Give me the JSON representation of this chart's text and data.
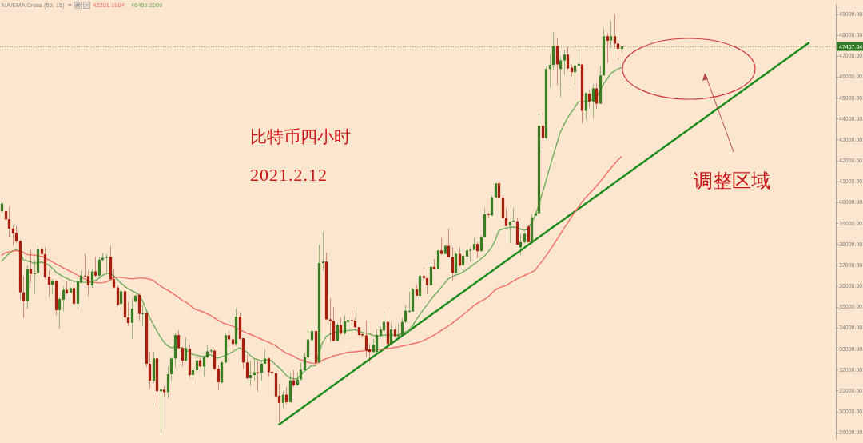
{
  "chart_data": {
    "type": "candlestick",
    "title": "比特币四小时",
    "subtitle": "2021.2.12",
    "legend_title": "MA/EMA Cross (50, 15)",
    "legend": "top left",
    "tick_labels": "y",
    "annotations": [
      "调整区域",
      {
        "text": "47467.04",
        "y": 47467.04
      }
    ],
    "ylim": [
      28710,
      49490
    ],
    "yticks": [
      {
        "value": 29000,
        "label": "29000.00"
      },
      {
        "value": 30000,
        "label": "30000.00"
      },
      {
        "value": 31000,
        "label": "31000.00"
      },
      {
        "value": 32000,
        "label": "32000.00"
      },
      {
        "value": 33000,
        "label": "33000.00"
      },
      {
        "value": 34000,
        "label": "34000.00"
      },
      {
        "value": 35000,
        "label": "35000.00"
      },
      {
        "value": 36000,
        "label": "36000.00"
      },
      {
        "value": 37000,
        "label": "37000.00"
      },
      {
        "value": 38000,
        "label": "38000.00"
      },
      {
        "value": 39000,
        "label": "39000.00"
      },
      {
        "value": 40000,
        "label": "40000.00"
      },
      {
        "value": 41000,
        "label": "41000.00"
      },
      {
        "value": 42000,
        "label": "42000.00"
      },
      {
        "value": 43000,
        "label": "43000.00"
      },
      {
        "value": 44000,
        "label": "44000.00"
      },
      {
        "value": 45000,
        "label": "45000.00"
      },
      {
        "value": 46000,
        "label": "46000.00"
      },
      {
        "value": 47000,
        "label": "47000.00"
      },
      {
        "value": 48000,
        "label": "48000.00"
      },
      {
        "value": 49000,
        "label": "49000.00"
      }
    ],
    "ref_lines": [
      {
        "axis": "y",
        "value": 47467.04,
        "color": "#8f9a72",
        "line_style": "dotted"
      }
    ],
    "categories": [
      null,
      null,
      null,
      null,
      null,
      null,
      null,
      null,
      null,
      null,
      null,
      null,
      null,
      null,
      null,
      null,
      null,
      null,
      null,
      null,
      null,
      null,
      null,
      null,
      null,
      null,
      null,
      null,
      null,
      null,
      null,
      null,
      null,
      null,
      null,
      null,
      null,
      null,
      null,
      null,
      null,
      null,
      null,
      null,
      null,
      null,
      null,
      null,
      null,
      null,
      null,
      null,
      null,
      null,
      null,
      null,
      null,
      null,
      null,
      null,
      null,
      null,
      null,
      null,
      null,
      null,
      null,
      null,
      null,
      null,
      null,
      null,
      null,
      null,
      null,
      null,
      null,
      null,
      null,
      null,
      null,
      null,
      null,
      null,
      null,
      null,
      null,
      null,
      null,
      null,
      null,
      null,
      null,
      null,
      null,
      null,
      null,
      null,
      null,
      null,
      null,
      null,
      null,
      null,
      null,
      null,
      null,
      null,
      null,
      null,
      null,
      null,
      null,
      null,
      null,
      null,
      null,
      null,
      null,
      null,
      null,
      null,
      null,
      null,
      null,
      null,
      null,
      null,
      null,
      null,
      null,
      null,
      null,
      null,
      null,
      null,
      null,
      null,
      null,
      null,
      null,
      null,
      null,
      null,
      null,
      null,
      null,
      null,
      null,
      null,
      null,
      null,
      null,
      null,
      null,
      null,
      null,
      null,
      null,
      null,
      null,
      null,
      null,
      null,
      null,
      null,
      null,
      null,
      null,
      null,
      null,
      null,
      null,
      null,
      null,
      null,
      null,
      null,
      null,
      null,
      null,
      null,
      null,
      null,
      null,
      null,
      null,
      null,
      null,
      null,
      null,
      null,
      null,
      null,
      null,
      null,
      null,
      null,
      null,
      null,
      null,
      null,
      null,
      null,
      null,
      null,
      null,
      null,
      null,
      null,
      null,
      null,
      null,
      null,
      null,
      null,
      null,
      null,
      null,
      null,
      null,
      null,
      null,
      null,
      null,
      null,
      null,
      null,
      null,
      null,
      null,
      null
    ],
    "ohlc": [
      [
        39590,
        40090,
        39510,
        39960
      ],
      [
        39590,
        39660,
        39180,
        39200
      ],
      [
        39210,
        39810,
        38360,
        38760
      ],
      [
        38760,
        38890,
        37940,
        38530
      ],
      [
        38550,
        38890,
        38050,
        38160
      ],
      [
        38160,
        38240,
        35360,
        35710
      ],
      [
        35710,
        36490,
        34490,
        35290
      ],
      [
        35290,
        36990,
        34930,
        36840
      ],
      [
        36840,
        37740,
        36180,
        36590
      ],
      [
        36610,
        37260,
        35610,
        36620
      ],
      [
        36640,
        38010,
        36430,
        37760
      ],
      [
        37760,
        37860,
        37490,
        37540
      ],
      [
        37540,
        37860,
        36360,
        36430
      ],
      [
        36460,
        36740,
        35490,
        36070
      ],
      [
        36070,
        36360,
        35610,
        36260
      ],
      [
        36260,
        36290,
        34610,
        34860
      ],
      [
        34860,
        35490,
        33990,
        35390
      ],
      [
        35360,
        35990,
        34800,
        35830
      ],
      [
        35830,
        36260,
        35610,
        35660
      ],
      [
        35700,
        35950,
        35690,
        35910
      ],
      [
        35910,
        36070,
        35130,
        35170
      ],
      [
        35170,
        36460,
        34890,
        36200
      ],
      [
        36180,
        36740,
        36140,
        36510
      ],
      [
        36510,
        37560,
        36440,
        36490
      ],
      [
        36490,
        36740,
        35530,
        36040
      ],
      [
        36040,
        36860,
        35910,
        36710
      ],
      [
        36710,
        37400,
        36440,
        36510
      ],
      [
        36510,
        37420,
        36440,
        37270
      ],
      [
        37260,
        37590,
        37190,
        37360
      ],
      [
        37360,
        37530,
        36630,
        37410
      ],
      [
        37410,
        37930,
        36290,
        36340
      ],
      [
        36340,
        36860,
        35880,
        35940
      ],
      [
        35940,
        36050,
        35050,
        35110
      ],
      [
        35160,
        35890,
        34860,
        35760
      ],
      [
        35760,
        35990,
        34110,
        34510
      ],
      [
        34510,
        35240,
        34110,
        34240
      ],
      [
        34260,
        35430,
        33490,
        34930
      ],
      [
        35260,
        35610,
        35240,
        35550
      ],
      [
        35590,
        35680,
        34340,
        34680
      ],
      [
        34680,
        35110,
        34090,
        34710
      ],
      [
        34710,
        34750,
        32140,
        32300
      ],
      [
        32300,
        32860,
        31110,
        31490
      ],
      [
        31490,
        32860,
        31380,
        32550
      ],
      [
        32550,
        32560,
        30240,
        30990
      ],
      [
        30990,
        31110,
        28990,
        31060
      ],
      [
        31060,
        31240,
        30740,
        30940
      ],
      [
        30940,
        32170,
        30640,
        31800
      ],
      [
        31800,
        32610,
        31490,
        32550
      ],
      [
        32550,
        33760,
        32110,
        33670
      ],
      [
        33670,
        33890,
        32990,
        33050
      ],
      [
        33050,
        33110,
        32170,
        32450
      ],
      [
        32450,
        33550,
        32390,
        33050
      ],
      [
        33010,
        33210,
        31610,
        31760
      ],
      [
        31760,
        32170,
        31510,
        31990
      ],
      [
        31990,
        32610,
        31930,
        32460
      ],
      [
        32460,
        32610,
        32130,
        32170
      ],
      [
        32170,
        32680,
        31680,
        32610
      ],
      [
        32610,
        33180,
        32540,
        32890
      ],
      [
        32890,
        32990,
        32800,
        32940
      ],
      [
        32920,
        32990,
        31980,
        32050
      ],
      [
        32050,
        32240,
        31050,
        31420
      ],
      [
        31400,
        32430,
        31360,
        32360
      ],
      [
        32360,
        33760,
        32310,
        33660
      ],
      [
        33660,
        33860,
        33140,
        33460
      ],
      [
        33460,
        33490,
        32840,
        33240
      ],
      [
        33240,
        34950,
        33140,
        34550
      ],
      [
        34550,
        34740,
        33440,
        33490
      ],
      [
        33520,
        33530,
        32050,
        32360
      ],
      [
        32360,
        32740,
        31550,
        31610
      ],
      [
        31610,
        32430,
        31240,
        31760
      ],
      [
        31760,
        32550,
        31490,
        31890
      ],
      [
        31890,
        32430,
        30960,
        31860
      ],
      [
        31860,
        32450,
        31490,
        32300
      ],
      [
        32300,
        32990,
        32290,
        32550
      ],
      [
        32550,
        32610,
        31700,
        31890
      ],
      [
        31910,
        32110,
        31790,
        31840
      ],
      [
        31840,
        31860,
        30710,
        30740
      ],
      [
        30760,
        31360,
        29490,
        30430
      ],
      [
        30430,
        30990,
        30180,
        30820
      ],
      [
        30820,
        31180,
        30360,
        30460
      ],
      [
        30460,
        31860,
        30440,
        31510
      ],
      [
        31510,
        31990,
        31180,
        31260
      ],
      [
        31260,
        31890,
        31250,
        31550
      ],
      [
        31550,
        32360,
        31490,
        32010
      ],
      [
        31990,
        32840,
        31980,
        32610
      ],
      [
        32610,
        34390,
        32540,
        33450
      ],
      [
        33430,
        34390,
        33360,
        33860
      ],
      [
        33860,
        34000,
        32240,
        32350
      ],
      [
        32360,
        37990,
        32340,
        37110
      ],
      [
        37110,
        38610,
        36740,
        37180
      ],
      [
        37180,
        37610,
        34380,
        34420
      ],
      [
        34420,
        35430,
        33360,
        34340
      ],
      [
        34340,
        35010,
        33360,
        33390
      ],
      [
        33390,
        34240,
        33360,
        34150
      ],
      [
        34150,
        34490,
        33670,
        33740
      ],
      [
        33740,
        34610,
        33660,
        34330
      ],
      [
        34300,
        34550,
        34260,
        34390
      ],
      [
        34390,
        34860,
        34300,
        34360
      ],
      [
        34360,
        34490,
        33990,
        34050
      ],
      [
        34050,
        34060,
        33630,
        33670
      ],
      [
        33710,
        33760,
        33590,
        33650
      ],
      [
        33650,
        34360,
        32610,
        32920
      ],
      [
        32990,
        33240,
        32360,
        32860
      ],
      [
        32860,
        33490,
        32800,
        33210
      ],
      [
        32860,
        33930,
        32760,
        33670
      ],
      [
        33640,
        34050,
        33590,
        33930
      ],
      [
        33890,
        34760,
        33860,
        34300
      ],
      [
        34300,
        34420,
        33180,
        33240
      ],
      [
        33240,
        34240,
        33180,
        33930
      ],
      [
        33930,
        33990,
        33550,
        33610
      ],
      [
        33610,
        34240,
        33550,
        33670
      ],
      [
        33670,
        34490,
        33630,
        34300
      ],
      [
        34300,
        35110,
        34230,
        34830
      ],
      [
        34780,
        35740,
        34740,
        34830
      ],
      [
        34800,
        35950,
        34790,
        35860
      ],
      [
        35860,
        36050,
        35540,
        35550
      ],
      [
        35550,
        36550,
        35490,
        36490
      ],
      [
        36490,
        36890,
        36360,
        36390
      ],
      [
        36390,
        36400,
        35640,
        36050
      ],
      [
        36050,
        36990,
        36040,
        36930
      ],
      [
        36930,
        37300,
        36810,
        36840
      ],
      [
        36840,
        37740,
        36830,
        37710
      ],
      [
        37710,
        38340,
        37490,
        37550
      ],
      [
        37550,
        37990,
        37540,
        37930
      ],
      [
        37930,
        38760,
        37380,
        37390
      ],
      [
        37390,
        37860,
        36260,
        36640
      ],
      [
        36640,
        37610,
        36630,
        37550
      ],
      [
        37550,
        37860,
        36930,
        36990
      ],
      [
        37010,
        37470,
        36740,
        37460
      ],
      [
        37420,
        37740,
        37410,
        37710
      ],
      [
        37700,
        37860,
        37180,
        37740
      ],
      [
        37740,
        38300,
        37730,
        38020
      ],
      [
        38020,
        38110,
        37330,
        37680
      ],
      [
        37680,
        38430,
        37670,
        38360
      ],
      [
        38340,
        39740,
        38330,
        39450
      ],
      [
        39450,
        39550,
        39290,
        39410
      ],
      [
        39390,
        40340,
        39360,
        40260
      ],
      [
        40260,
        40940,
        40250,
        40930
      ],
      [
        40930,
        41010,
        40220,
        40240
      ],
      [
        40240,
        40360,
        39250,
        39260
      ],
      [
        39260,
        39740,
        38840,
        38890
      ],
      [
        38890,
        39110,
        38050,
        39090
      ],
      [
        39090,
        39760,
        39080,
        39140
      ],
      [
        39110,
        39300,
        37980,
        37990
      ],
      [
        37860,
        38500,
        37490,
        38110
      ],
      [
        38110,
        38610,
        38050,
        38510
      ],
      [
        38860,
        38920,
        38100,
        38110
      ],
      [
        38110,
        39430,
        38050,
        39300
      ],
      [
        39390,
        39550,
        39360,
        39490
      ],
      [
        39490,
        44240,
        39480,
        43680
      ],
      [
        43680,
        44300,
        42610,
        43090
      ],
      [
        43090,
        46490,
        43040,
        46390
      ],
      [
        46390,
        47110,
        45510,
        46590
      ],
      [
        46590,
        48140,
        46300,
        47490
      ],
      [
        47490,
        47860,
        45610,
        46610
      ],
      [
        46390,
        46990,
        45050,
        46800
      ],
      [
        46800,
        47300,
        46110,
        47080
      ],
      [
        47080,
        47430,
        46300,
        46420
      ],
      [
        46460,
        46590,
        46050,
        46240
      ],
      [
        46240,
        46930,
        45670,
        46550
      ],
      [
        46550,
        47300,
        46490,
        46640
      ],
      [
        46610,
        46640,
        43800,
        44390
      ],
      [
        44390,
        45300,
        43990,
        45240
      ],
      [
        45210,
        45360,
        44550,
        44840
      ],
      [
        44840,
        45670,
        44050,
        45460
      ],
      [
        45460,
        45740,
        44490,
        44740
      ],
      [
        44740,
        46550,
        44720,
        46090
      ],
      [
        46090,
        48340,
        46070,
        47960
      ],
      [
        47960,
        48110,
        46680,
        47740
      ],
      [
        47760,
        48670,
        47430,
        47960
      ],
      [
        47960,
        48990,
        47360,
        47610
      ],
      [
        47610,
        47710,
        46840,
        47360
      ],
      [
        47360,
        47490,
        47170,
        47467.04
      ],
      null,
      null,
      null,
      null,
      null,
      null,
      null,
      null,
      null,
      null,
      null,
      null,
      null,
      null,
      null,
      null,
      null,
      null,
      null,
      null,
      null,
      null,
      null,
      null,
      null,
      null,
      null,
      null,
      null,
      null,
      null,
      null,
      null,
      null,
      null,
      null,
      null,
      null,
      null,
      null,
      null,
      null,
      null,
      null,
      null,
      null,
      null,
      null,
      null,
      null,
      null,
      null,
      null,
      null,
      null,
      null,
      null,
      null,
      null
    ],
    "series": [
      {
        "type": "line",
        "name": "42201.1904",
        "color": "#f26d63",
        "values": [
          37490,
          37600,
          37640,
          37680,
          37710,
          37690,
          37620,
          37510,
          37500,
          37490,
          37450,
          37430,
          37370,
          37260,
          37170,
          37070,
          36980,
          36890,
          36800,
          36720,
          36630,
          36530,
          36440,
          36350,
          36270,
          36200,
          36180,
          36160,
          36170,
          36210,
          36290,
          36400,
          36430,
          36430,
          36410,
          36380,
          36360,
          36370,
          36390,
          36400,
          36380,
          36340,
          36290,
          36140,
          36030,
          35910,
          35820,
          35710,
          35590,
          35480,
          35330,
          35260,
          35130,
          34970,
          34880,
          34830,
          34770,
          34680,
          34600,
          34490,
          34380,
          34280,
          34210,
          34150,
          34100,
          34020,
          33930,
          33850,
          33760,
          33700,
          33630,
          33550,
          33480,
          33400,
          33330,
          33250,
          33160,
          33030,
          32910,
          32800,
          32740,
          32650,
          32560,
          32480,
          32430,
          32370,
          32330,
          32310,
          32350,
          32460,
          32540,
          32590,
          32670,
          32710,
          32760,
          32800,
          32840,
          32860,
          32870,
          32890,
          32910,
          32920,
          32940,
          32950,
          32960,
          32980,
          32990,
          33020,
          33040,
          33080,
          33100,
          33140,
          33170,
          33210,
          33250,
          33290,
          33330,
          33400,
          33490,
          33570,
          33670,
          33780,
          33890,
          34000,
          34110,
          34230,
          34360,
          34500,
          34630,
          34770,
          34920,
          35070,
          35190,
          35290,
          35380,
          35490,
          35670,
          35840,
          35930,
          35990,
          36040,
          36150,
          36260,
          36350,
          36430,
          36510,
          36590,
          36670,
          36760,
          36990,
          37210,
          37440,
          37690,
          37960,
          38220,
          38490,
          38760,
          39020,
          39290,
          39550,
          39780,
          40020,
          40240,
          40420,
          40600,
          40790,
          40990,
          41200,
          41430,
          41640,
          41840,
          42040,
          42200,
          null,
          null,
          null,
          null,
          null,
          null,
          null,
          null,
          null,
          null,
          null,
          null,
          null,
          null,
          null,
          null,
          null,
          null,
          null,
          null,
          null,
          null,
          null,
          null,
          null,
          null,
          null,
          null,
          null,
          null,
          null,
          null,
          null,
          null,
          null,
          null,
          null,
          null,
          null,
          null,
          null,
          null,
          null,
          null,
          null,
          null,
          null,
          null,
          null,
          null,
          null,
          null,
          null,
          null,
          null,
          null,
          null,
          null,
          null
        ]
      },
      {
        "type": "line",
        "name": "46459.2209",
        "color": "#6fae5c",
        "values": [
          37210,
          37390,
          37560,
          37690,
          37750,
          37650,
          37260,
          37210,
          37170,
          37100,
          37130,
          37160,
          37100,
          37020,
          36870,
          36680,
          36570,
          36470,
          36380,
          36300,
          36240,
          36220,
          36200,
          36190,
          36180,
          36220,
          36280,
          36380,
          36530,
          36600,
          36620,
          36510,
          36340,
          36170,
          36020,
          35890,
          35800,
          35710,
          35600,
          35320,
          34900,
          34530,
          34190,
          33880,
          33590,
          33330,
          33160,
          33060,
          33100,
          33090,
          33050,
          32980,
          32860,
          32740,
          32710,
          32670,
          32640,
          32700,
          32730,
          32600,
          32570,
          32630,
          32690,
          32770,
          32860,
          32970,
          33060,
          32960,
          32860,
          32700,
          32550,
          32500,
          32440,
          32460,
          32490,
          32420,
          32260,
          32110,
          31930,
          31740,
          31620,
          31580,
          31590,
          31760,
          31930,
          32070,
          32210,
          32200,
          32760,
          33290,
          33590,
          33700,
          33790,
          33820,
          33840,
          33860,
          33880,
          33900,
          33930,
          33870,
          33810,
          33760,
          33720,
          33660,
          33610,
          33640,
          33660,
          33670,
          33670,
          33670,
          33680,
          33750,
          33810,
          33890,
          34110,
          34390,
          34640,
          34880,
          35110,
          35340,
          35560,
          35740,
          35950,
          36160,
          36370,
          36450,
          36540,
          36590,
          36680,
          36790,
          36920,
          37050,
          37170,
          37310,
          37450,
          37650,
          37870,
          38220,
          38680,
          38730,
          38790,
          38820,
          38830,
          38800,
          38730,
          38680,
          38730,
          39040,
          39370,
          39870,
          40430,
          41010,
          41630,
          42240,
          42800,
          43360,
          43710,
          44050,
          44310,
          44540,
          44820,
          44850,
          44850,
          44860,
          44940,
          45020,
          45310,
          45670,
          45910,
          46180,
          46290,
          46390,
          46460,
          null,
          null,
          null,
          null,
          null,
          null,
          null,
          null,
          null,
          null,
          null,
          null,
          null,
          null,
          null,
          null,
          null,
          null,
          null,
          null,
          null,
          null,
          null,
          null,
          null,
          null,
          null,
          null,
          null,
          null,
          null,
          null,
          null,
          null,
          null,
          null,
          null,
          null,
          null,
          null,
          null,
          null,
          null,
          null,
          null,
          null,
          null,
          null,
          null,
          null,
          null,
          null,
          null,
          null,
          null,
          null,
          null,
          null,
          null
        ]
      },
      {
        "type": "line",
        "color": "#178a17",
        "values": [
          null,
          null,
          null,
          null,
          null,
          null,
          null,
          null,
          null,
          null,
          null,
          null,
          null,
          null,
          null,
          null,
          null,
          null,
          null,
          null,
          null,
          null,
          null,
          null,
          null,
          null,
          null,
          null,
          null,
          null,
          null,
          null,
          null,
          null,
          null,
          null,
          null,
          null,
          null,
          null,
          null,
          null,
          null,
          null,
          null,
          null,
          null,
          null,
          null,
          null,
          null,
          null,
          null,
          null,
          null,
          null,
          null,
          null,
          null,
          null,
          null,
          null,
          null,
          null,
          null,
          null,
          null,
          null,
          null,
          null,
          null,
          null,
          null,
          null,
          null,
          null,
          null,
          29400,
          29520,
          29650,
          29770,
          29900,
          30020,
          30140,
          30270,
          30390,
          30520,
          30640,
          30770,
          30890,
          31010,
          31140,
          31260,
          31390,
          31510,
          31630,
          31760,
          31880,
          32010,
          32130,
          32250,
          32380,
          32500,
          32630,
          32750,
          32870,
          33000,
          33120,
          33250,
          33370,
          33500,
          33620,
          33740,
          33870,
          33990,
          34120,
          34240,
          34360,
          34490,
          34610,
          34740,
          34860,
          34980,
          35110,
          35230,
          35360,
          35480,
          35610,
          35730,
          35850,
          35980,
          36100,
          36230,
          36350,
          36470,
          36600,
          36720,
          36850,
          36970,
          37090,
          37220,
          37340,
          37470,
          37590,
          37710,
          37840,
          37960,
          38090,
          38210,
          38340,
          38460,
          38580,
          38710,
          38830,
          38960,
          39080,
          39200,
          39330,
          39450,
          39580,
          39700,
          39820,
          39950,
          40070,
          40200,
          40320,
          40440,
          40570,
          40690,
          40820,
          40940,
          41070,
          41190,
          41310,
          41440,
          41560,
          41690,
          41810,
          41930,
          42060,
          42180,
          42310,
          42430,
          42550,
          42680,
          42800,
          42930,
          43050,
          43180,
          43300,
          43420,
          43550,
          43670,
          43800,
          43920,
          44040,
          44170,
          44290,
          44420,
          44540,
          44660,
          44790,
          44910,
          45040,
          45160,
          45280,
          45410,
          45530,
          45660,
          45780,
          45910,
          46030,
          46150,
          46280,
          46400,
          46530,
          46650,
          46770,
          46900,
          47020,
          47150,
          47270,
          47390,
          47520,
          47640,
          null,
          null,
          null,
          null,
          null,
          null,
          null
        ]
      }
    ]
  }
}
